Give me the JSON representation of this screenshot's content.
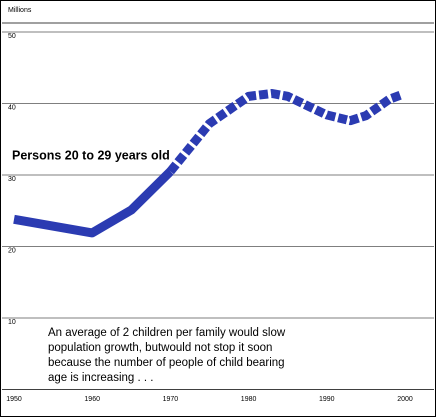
{
  "chart_data": {
    "type": "line",
    "y_label": "Millions",
    "x": [
      1950,
      1960,
      1965,
      1970,
      1975,
      1980,
      1983,
      1985,
      1990,
      1993,
      1995,
      1998,
      1999.5
    ],
    "values": [
      23.8,
      21.9,
      25.1,
      30.5,
      37.2,
      41,
      41.4,
      41,
      38.4,
      37.6,
      38.3,
      40.6,
      41.2
    ],
    "color": "#2b3bb2",
    "dashed_after": 1970,
    "xlim": [
      1950,
      2000
    ],
    "xticks": [
      1950,
      1960,
      1970,
      1980,
      1990,
      2000
    ],
    "ylim": [
      0,
      50
    ],
    "yticks": [
      10,
      20,
      30,
      40,
      50
    ],
    "grid": true,
    "annotations": [
      "Persons 20 to 29 years old",
      [
        "An average of 2 children per family would slow",
        "population growth, butwould not stop it soon",
        "because the number of people of child bearing",
        "age is increasing . . ."
      ]
    ]
  }
}
